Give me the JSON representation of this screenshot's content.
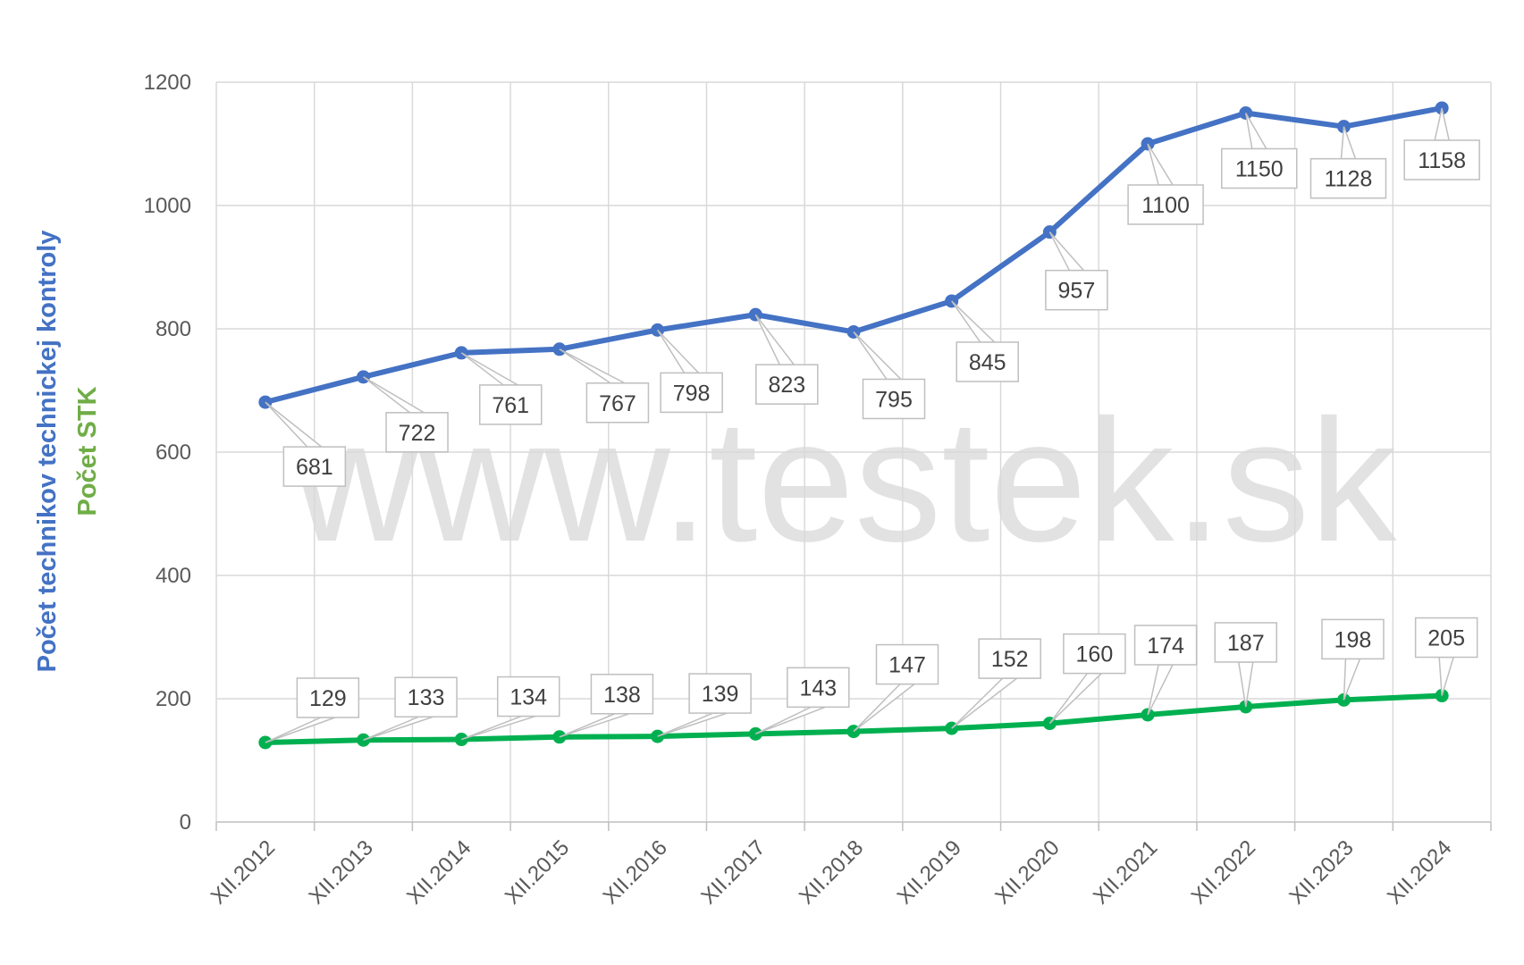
{
  "watermark": "www.testek.sk",
  "chart_data": {
    "type": "line",
    "categories": [
      "XII.2012",
      "XII.2013",
      "XII.2014",
      "XII.2015",
      "XII.2016",
      "XII.2017",
      "XII.2018",
      "XII.2019",
      "XII.2020",
      "XII.2021",
      "XII.2022",
      "XII.2023",
      "XII.2024"
    ],
    "ylim": [
      0,
      1200
    ],
    "yticks": [
      0,
      200,
      400,
      600,
      800,
      1000,
      1200
    ],
    "grid": true,
    "legend": "none",
    "ylabel_primary": "Počet technikov technickej kontroly",
    "ylabel_secondary": "Počet STK",
    "series": [
      {
        "name": "Počet technikov technickej kontroly",
        "color": "#4472c4",
        "values": [
          681,
          722,
          761,
          767,
          798,
          823,
          795,
          845,
          957,
          1100,
          1150,
          1128,
          1158
        ]
      },
      {
        "name": "Počet STK",
        "color": "#00b050",
        "values": [
          129,
          133,
          134,
          138,
          139,
          143,
          147,
          152,
          160,
          174,
          187,
          198,
          205
        ]
      }
    ]
  }
}
